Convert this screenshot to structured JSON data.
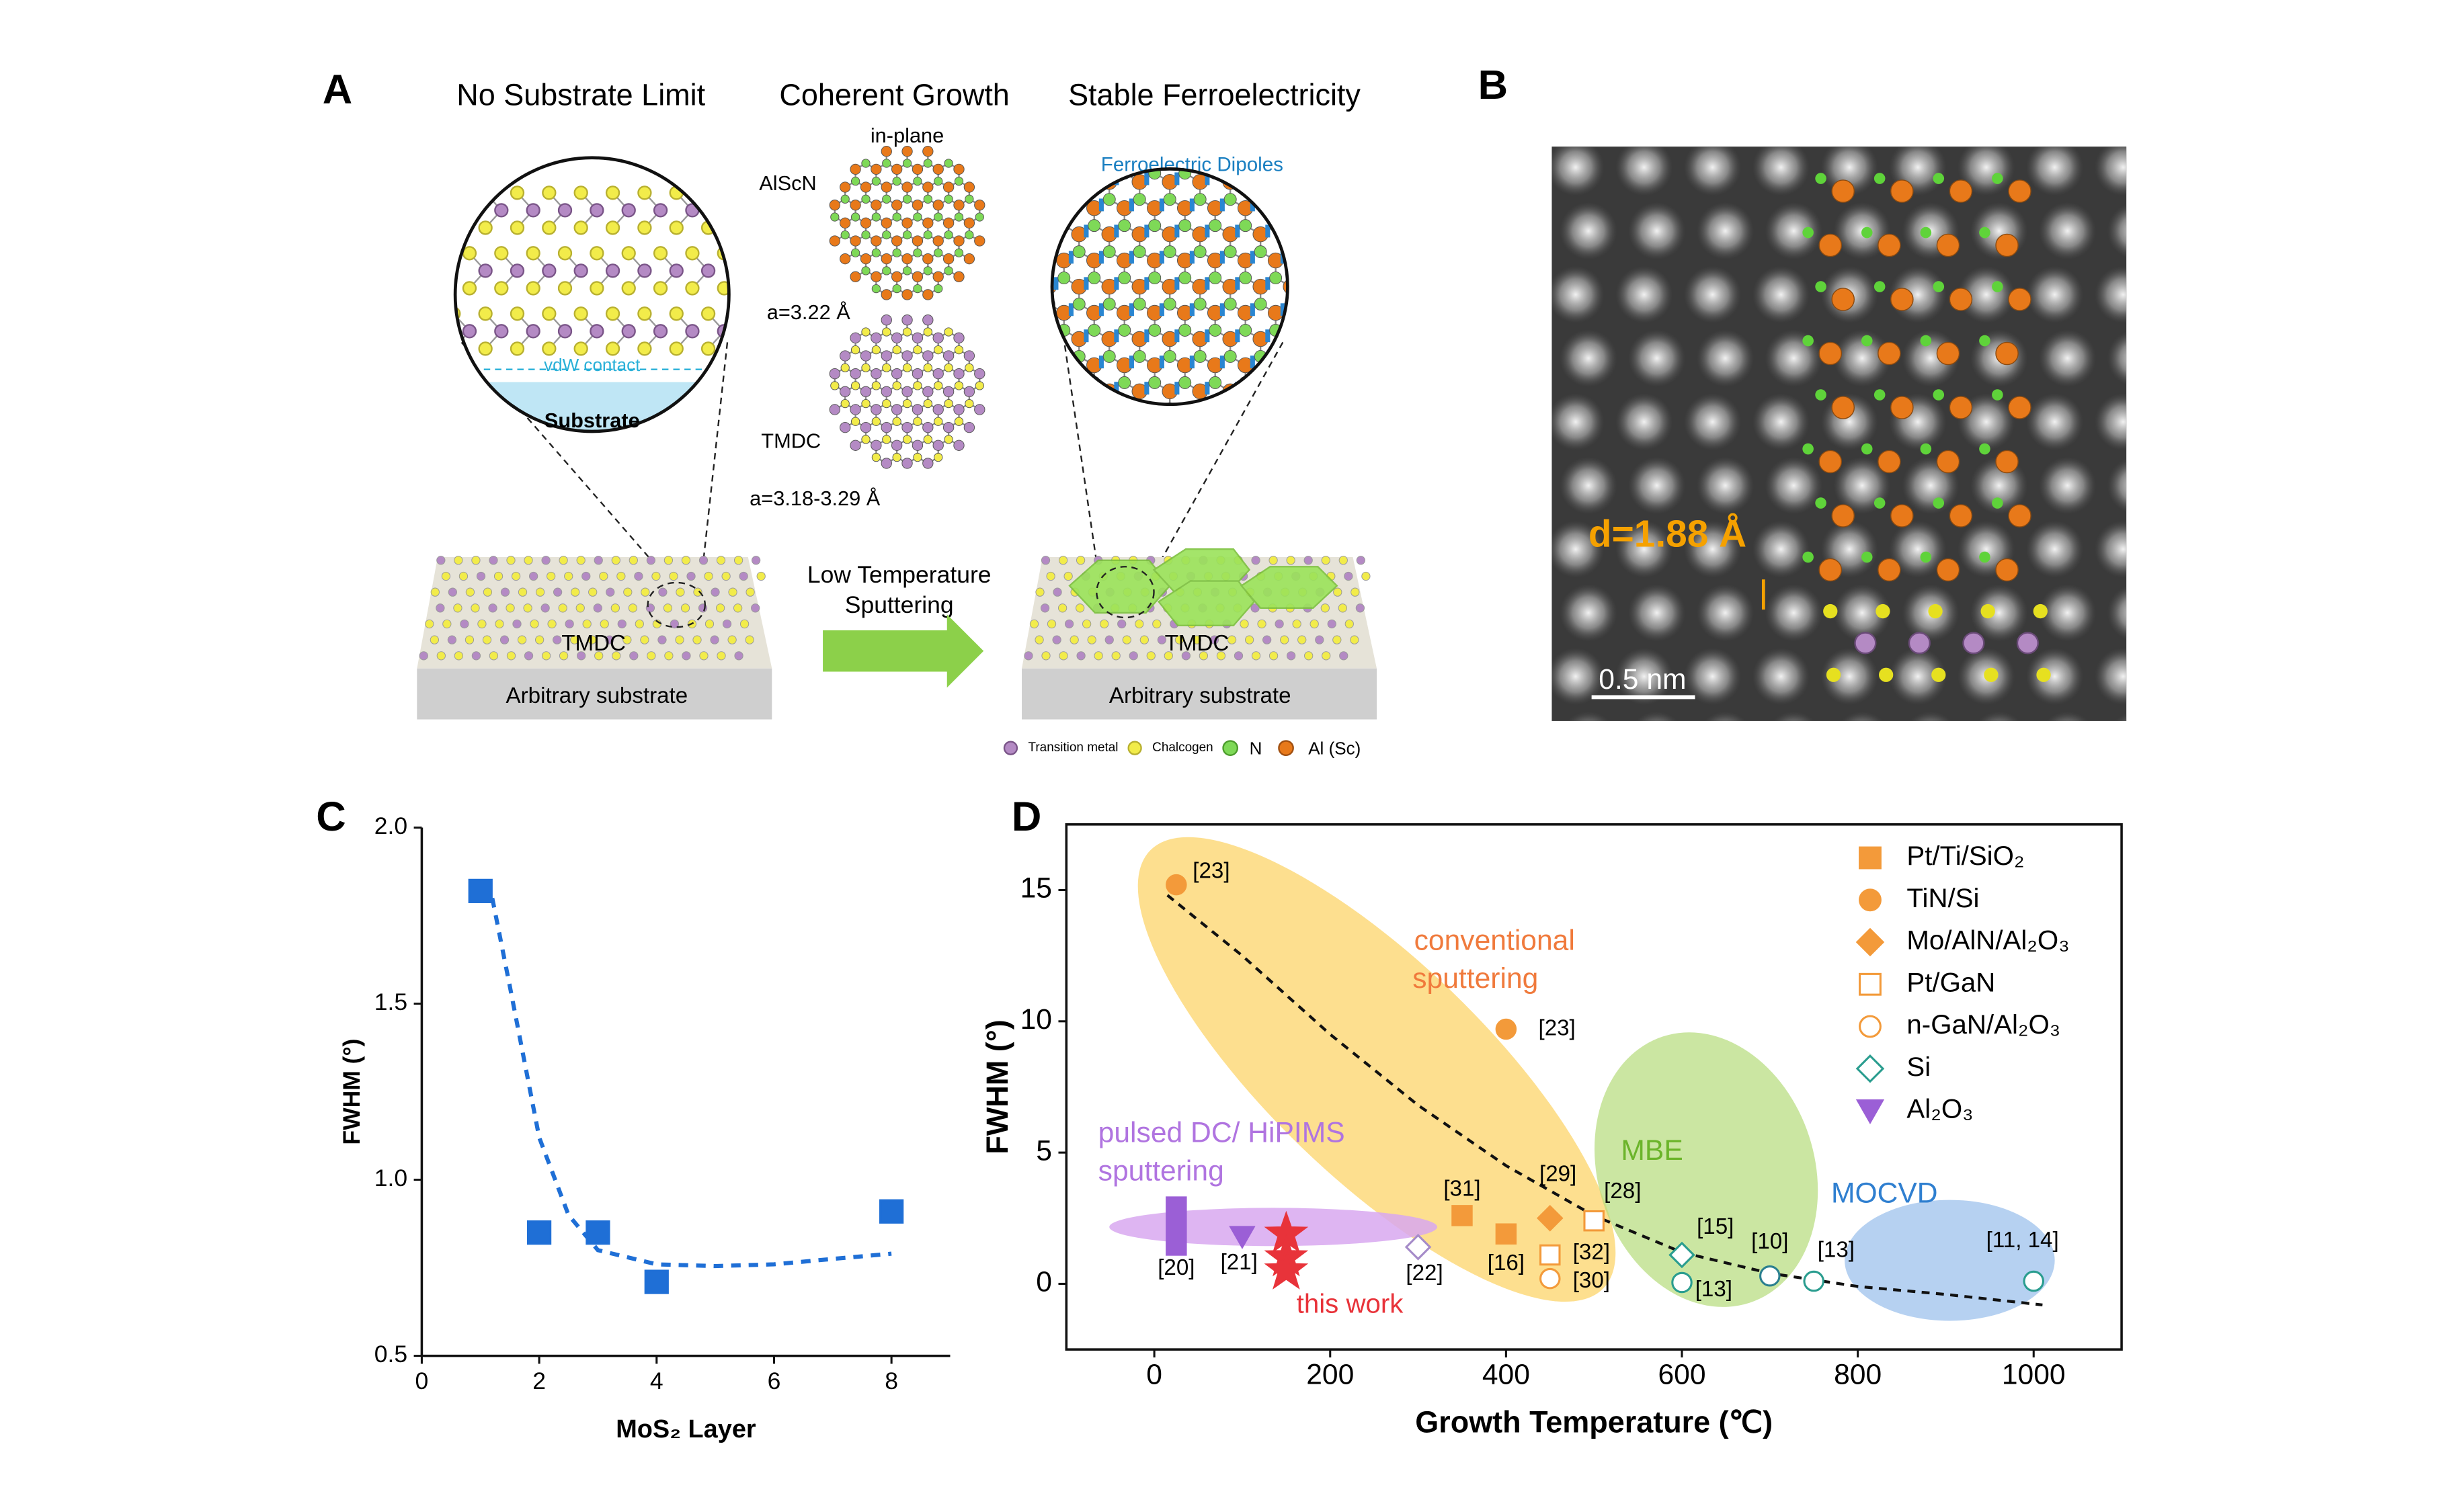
{
  "panel_a": {
    "label": "A",
    "headings": [
      "No Substrate Limit",
      "Coherent Growth",
      "Stable Ferroelectricity"
    ],
    "vdw": "vdW contact",
    "substrate_inset": "Substrate",
    "tmdc_left": "TMDC",
    "substrate_left": "Arbitrary substrate",
    "in_plane": "in-plane",
    "alscn": "AlScN",
    "a_alscn": "a=3.22 Å",
    "tmdc_mid": "TMDC",
    "a_tmdc": "a=3.18-3.29 Å",
    "process": [
      "Low Temperature",
      "Sputtering"
    ],
    "dipoles": "Ferroelectric Dipoles",
    "tmdc_right": "TMDC",
    "substrate_right": "Arbitrary substrate",
    "legend": [
      "Transition metal",
      "Chalcogen",
      "N",
      "Al (Sc)"
    ]
  },
  "panel_b": {
    "label": "B",
    "spacing": "d=1.88 Å",
    "scale_bar": "0.5 nm"
  },
  "chart_data": [
    {
      "type": "scatter",
      "panel": "C",
      "x_label": "MoS₂ Layer",
      "y_label": "FWHM (°)",
      "x": [
        1,
        2,
        3,
        4,
        8
      ],
      "values": [
        1.82,
        0.85,
        0.85,
        0.71,
        0.91
      ],
      "color": "#1f6fd6",
      "marker": "square",
      "fit_line": {
        "x": [
          1.2,
          1.5,
          2,
          2.5,
          3,
          4,
          5,
          6,
          7,
          8
        ],
        "values": [
          1.8,
          1.55,
          1.12,
          0.9,
          0.8,
          0.76,
          0.755,
          0.76,
          0.775,
          0.79
        ],
        "color": "#1f6fd6"
      },
      "xlim": [
        0,
        9
      ],
      "xticks": [
        0,
        2,
        4,
        6,
        8
      ],
      "ylim": [
        0.5,
        2.0
      ],
      "yticks": [
        0.5,
        {
          "value": 1,
          "label": "1.0"
        },
        1.5,
        {
          "value": 2,
          "label": "2.0"
        }
      ]
    },
    {
      "type": "scatter",
      "panel": "D",
      "x_label": "Growth Temperature (℃)",
      "y_label": "FWHM (°)",
      "series": [
        {
          "name": "Pt/Ti/SiO₂",
          "color": "#f39a3a",
          "marker": "square",
          "filled": true,
          "x": [
            350,
            400
          ],
          "values": [
            2.6,
            1.9
          ],
          "point_labels": [
            "[31]",
            "[16]"
          ]
        },
        {
          "name": "TiN/Si",
          "color": "#f39a3a",
          "marker": "circle",
          "filled": true,
          "x": [
            25,
            400
          ],
          "values": [
            15.2,
            9.7
          ],
          "point_labels": [
            "[23]",
            "[23]"
          ]
        },
        {
          "name": "Mo/AlN/Al₂O₃",
          "color": "#f39a3a",
          "marker": "diamond",
          "filled": true,
          "x": [
            450
          ],
          "values": [
            2.5
          ],
          "point_labels": [
            "[29]"
          ]
        },
        {
          "name": "Pt/GaN",
          "color": "#f39a3a",
          "marker": "square",
          "filled": false,
          "x": [
            500,
            450
          ],
          "values": [
            2.4,
            1.1
          ],
          "point_labels": [
            "[28]",
            "[32]"
          ]
        },
        {
          "name": "n-GaN/Al₂O₃",
          "color": "#f39a3a",
          "marker": "circle",
          "filled": false,
          "x": [
            450,
            600,
            700,
            750,
            1000
          ],
          "values": [
            0.2,
            0.05,
            0.3,
            0.1,
            0.1
          ],
          "point_labels": [
            "[30]",
            "[13]",
            "[10]",
            "[13]",
            "[11, 14]"
          ],
          "point_colors": [
            "#f39a3a",
            "#2a9d8f",
            "#2a7f8f",
            "#2a9d8f",
            "#2a9d8f"
          ]
        },
        {
          "name": "Si",
          "color": "#2a9d8f",
          "marker": "diamond",
          "filled": false,
          "x": [
            300,
            600
          ],
          "values": [
            1.4,
            1.1
          ],
          "point_labels": [
            "[22]",
            "[15]"
          ],
          "point_colors": [
            "#a58bc9",
            "#2a9d8f"
          ]
        },
        {
          "name": "Al₂O₃",
          "color": "#9b5fd6",
          "marker": "triangle-down",
          "filled": true,
          "x": [
            100
          ],
          "values": [
            1.8
          ],
          "point_labels": [
            "[21]"
          ]
        },
        {
          "color": "#9b5fd6",
          "marker": "bar",
          "filled": true,
          "x": [
            25
          ],
          "values": [
            2.2
          ],
          "point_labels": [
            "[20]"
          ]
        },
        {
          "color": "#e8333a",
          "marker": "star",
          "filled": true,
          "x": [
            150,
            150,
            150
          ],
          "values": [
            1.9,
            1.0,
            0.5
          ],
          "label": "this work"
        }
      ],
      "fit_line": {
        "x": [
          15,
          100,
          200,
          300,
          400,
          500,
          600,
          700,
          800,
          900,
          1010
        ],
        "values": [
          14.8,
          12.5,
          9.5,
          6.8,
          4.5,
          2.6,
          1.2,
          0.4,
          -0.1,
          -0.4,
          -0.8
        ],
        "color": "#111111"
      },
      "regions": [
        {
          "label": [
            "conventional",
            "sputtering"
          ]
        },
        {
          "label": [
            "MBE"
          ]
        },
        {
          "label": [
            "MOCVD"
          ]
        },
        {
          "label": [
            "pulsed DC/ HiPIMS",
            "sputtering"
          ]
        }
      ],
      "xlim": [
        -100,
        1100
      ],
      "xticks": [
        0,
        200,
        400,
        600,
        800,
        1000
      ],
      "ylim": [
        -2.5,
        17.5
      ],
      "yticks": [
        0,
        5,
        10,
        15
      ]
    }
  ]
}
